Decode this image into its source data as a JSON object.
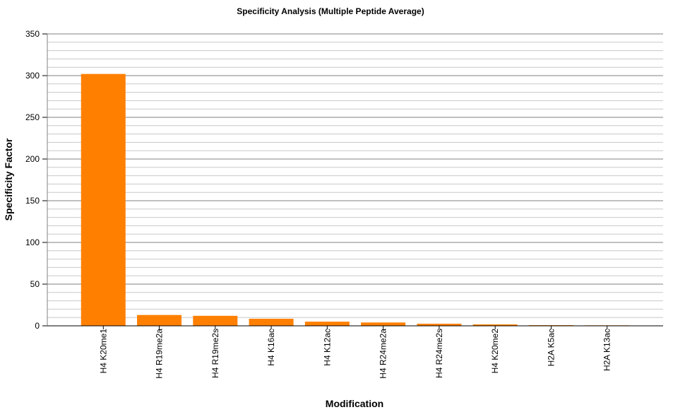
{
  "chart_data": {
    "type": "bar",
    "title": "Specificity Analysis (Multiple Peptide Average)",
    "x_label": "Modification",
    "y_label": "Specificity Factor",
    "categories": [
      "H4 K20me1",
      "H4 R19me2a",
      "H4 R19me2s",
      "H4 K16ac",
      "H4 K12ac",
      "H4 R24me2a",
      "H4 R24me2s",
      "H4 K20me2",
      "H2A K5ac",
      "H2A K13ac"
    ],
    "values": [
      302,
      13,
      12,
      8.5,
      5,
      4,
      2.5,
      1.7,
      0.8,
      0.6
    ],
    "color": "#ff8000",
    "ylim": [
      0,
      350
    ],
    "yticks": [
      0,
      50,
      100,
      150,
      200,
      250,
      300,
      350
    ],
    "grid": true,
    "minor_grid": true
  }
}
